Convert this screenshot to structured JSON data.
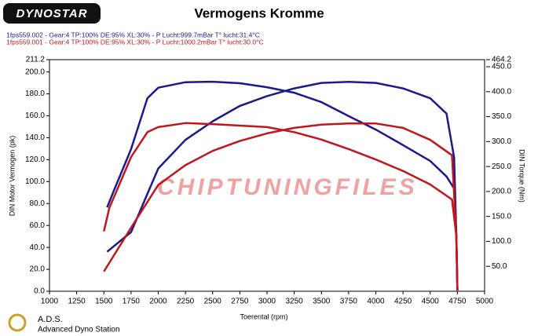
{
  "chart_data": {
    "type": "line",
    "logo": "DYNOSTAR",
    "title": "Vermogens Kromme",
    "xlabel": "Toerental (rpm)",
    "ylabel": "DIN Motor Vermogen (pk)",
    "y2label": "DIN Torque (Nm)",
    "watermark": "CHIPTUNINGFILES",
    "footer": {
      "brand": "A.D.S.",
      "subtitle": "Advanced Dyno Station"
    },
    "xlim": [
      1000,
      5000
    ],
    "xticks": [
      1000,
      1250,
      1500,
      1750,
      2000,
      2250,
      2500,
      2750,
      3000,
      3250,
      3500,
      3750,
      4000,
      4250,
      4500,
      4750,
      5000
    ],
    "ylim": [
      0,
      211.2
    ],
    "yticks": [
      {
        "value": 0,
        "label": "0.0"
      },
      {
        "value": 20,
        "label": "20.0"
      },
      {
        "value": 40,
        "label": "40.0"
      },
      {
        "value": 60,
        "label": "60.0"
      },
      {
        "value": 80,
        "label": "80.0"
      },
      {
        "value": 100,
        "label": "100.0"
      },
      {
        "value": 120,
        "label": "120.0"
      },
      {
        "value": 140,
        "label": "140.0"
      },
      {
        "value": 160,
        "label": "160.0"
      },
      {
        "value": 180,
        "label": "180.0"
      },
      {
        "value": 200,
        "label": "200.0"
      },
      211.2
    ],
    "y2lim": [
      0,
      464.2
    ],
    "y2ticks": [
      {
        "value": 50,
        "label": "50.0"
      },
      {
        "value": 100,
        "label": "100.0"
      },
      {
        "value": 150,
        "label": "150.0"
      },
      {
        "value": 200,
        "label": "200.0"
      },
      {
        "value": 250,
        "label": "250.0"
      },
      {
        "value": 300,
        "label": "300.0"
      },
      {
        "value": 350,
        "label": "350.0"
      },
      {
        "value": 400,
        "label": "400.0"
      },
      {
        "value": 450,
        "label": "450.0"
      },
      464.2
    ],
    "runs": [
      {
        "name": "1fps559.002 - Gear:4 TP:100% DE:95% XL:30%   - P Lucht:999.7mBar T° lucht:31.4°C",
        "color": "#1a1a8c",
        "power": {
          "x": [
            1530,
            1750,
            2000,
            2250,
            2500,
            2750,
            3000,
            3250,
            3500,
            3750,
            4000,
            4250,
            4500,
            4650,
            4720,
            4740,
            4750
          ],
          "values": [
            36,
            54,
            112,
            138,
            155,
            169,
            178,
            185,
            190,
            191,
            190,
            185,
            176,
            162,
            122,
            51,
            0.7
          ]
        },
        "torque": {
          "x": [
            1530,
            1600,
            1750,
            1900,
            2000,
            2250,
            2500,
            2750,
            3000,
            3250,
            3500,
            3750,
            4000,
            4250,
            4500,
            4650,
            4720,
            4740,
            4750
          ],
          "values": [
            168,
            206,
            285,
            387,
            408,
            419,
            420,
            417,
            409,
            398,
            379,
            351,
            324,
            293,
            261,
            230,
            206,
            112,
            2
          ]
        }
      },
      {
        "name": "1fps559.001 - Gear:4 TP:100% DE:95% XL:30%   - P Lucht:1000.2mBar T° lucht:30.0°C",
        "color": "#c0161c",
        "power": {
          "x": [
            1500,
            1750,
            2000,
            2250,
            2500,
            2750,
            3000,
            3250,
            3500,
            3750,
            4000,
            4250,
            4500,
            4700,
            4740,
            4750
          ],
          "values": [
            18,
            58,
            97,
            115,
            128,
            137,
            144,
            149,
            152,
            153,
            153,
            149,
            138,
            124,
            51,
            0.7
          ]
        },
        "torque": {
          "x": [
            1500,
            1550,
            1750,
            1900,
            2000,
            2250,
            2500,
            2750,
            3000,
            3250,
            3500,
            3750,
            4000,
            4250,
            4500,
            4700,
            4740,
            4750
          ],
          "values": [
            120,
            167,
            269,
            319,
            329,
            337,
            335,
            332,
            329,
            319,
            304,
            285,
            264,
            241,
            214,
            184,
            112,
            2
          ]
        }
      }
    ]
  }
}
